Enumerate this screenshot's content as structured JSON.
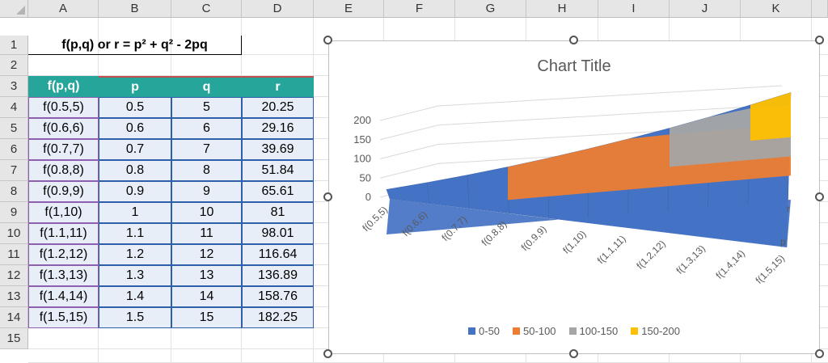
{
  "columns": [
    "A",
    "B",
    "C",
    "D",
    "E",
    "F",
    "G",
    "H",
    "I",
    "J",
    "K"
  ],
  "rows": [
    "1",
    "2",
    "3",
    "4",
    "5",
    "6",
    "7",
    "8",
    "9",
    "10",
    "11",
    "12",
    "13",
    "14",
    "15"
  ],
  "formula_title": "f(p,q) or r = p² + q² - 2pq",
  "table": {
    "headers": [
      "f(p,q)",
      "p",
      "q",
      "r"
    ],
    "rows": [
      [
        "f(0.5,5)",
        "0.5",
        "5",
        "20.25"
      ],
      [
        "f(0.6,6)",
        "0.6",
        "6",
        "29.16"
      ],
      [
        "f(0.7,7)",
        "0.7",
        "7",
        "39.69"
      ],
      [
        "f(0.8,8)",
        "0.8",
        "8",
        "51.84"
      ],
      [
        "f(0.9,9)",
        "0.9",
        "9",
        "65.61"
      ],
      [
        "f(1,10)",
        "1",
        "10",
        "81"
      ],
      [
        "f(1.1,11)",
        "1.1",
        "11",
        "98.01"
      ],
      [
        "f(1.2,12)",
        "1.2",
        "12",
        "116.64"
      ],
      [
        "f(1.3,13)",
        "1.3",
        "13",
        "136.89"
      ],
      [
        "f(1.4,14)",
        "1.4",
        "14",
        "158.76"
      ],
      [
        "f(1.5,15)",
        "1.5",
        "15",
        "182.25"
      ]
    ]
  },
  "chart_data": {
    "type": "area",
    "title": "Chart Title",
    "categories": [
      "f(0.5,5)",
      "f(0.6,6)",
      "f(0.7,7)",
      "f(0.8,8)",
      "f(0.9,9)",
      "f(1,10)",
      "f(1.1,11)",
      "f(1.2,12)",
      "f(1.3,13)",
      "f(1.4,14)",
      "f(1.5,15)"
    ],
    "series_axis": [
      "p",
      "r"
    ],
    "zlim": [
      0,
      200
    ],
    "z_ticks": [
      "0",
      "50",
      "100",
      "150",
      "200"
    ],
    "legend_position": "bottom",
    "legend": [
      {
        "label": "0-50",
        "color": "#4472c4"
      },
      {
        "label": "50-100",
        "color": "#ed7d31"
      },
      {
        "label": "100-150",
        "color": "#a5a5a5"
      },
      {
        "label": "150-200",
        "color": "#ffc000"
      }
    ],
    "series": [
      {
        "name": "p",
        "values": [
          0.5,
          0.6,
          0.7,
          0.8,
          0.9,
          1,
          1.1,
          1.2,
          1.3,
          1.4,
          1.5
        ]
      },
      {
        "name": "r",
        "values": [
          20.25,
          29.16,
          39.69,
          51.84,
          65.61,
          81,
          98.01,
          116.64,
          136.89,
          158.76,
          182.25
        ]
      }
    ]
  }
}
